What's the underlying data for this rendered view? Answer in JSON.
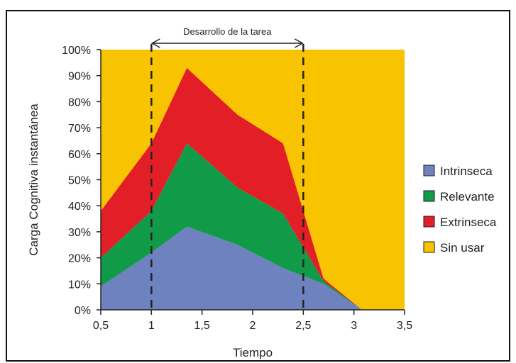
{
  "chart_data": {
    "type": "area",
    "stacked": true,
    "title": "",
    "xlabel": "Tiempo",
    "ylabel": "Carga Cognitiva instantánea",
    "xlim": [
      0.5,
      3.5
    ],
    "ylim": [
      0,
      100
    ],
    "x_ticks": [
      "0,5",
      "1",
      "1,5",
      "2",
      "2,5",
      "3",
      "3,5"
    ],
    "x_tick_values": [
      0.5,
      1,
      1.5,
      2,
      2.5,
      3,
      3.5
    ],
    "y_ticks": [
      "0%",
      "10%",
      "20%",
      "30%",
      "40%",
      "50%",
      "60%",
      "70%",
      "80%",
      "90%",
      "100%"
    ],
    "y_tick_values": [
      0,
      10,
      20,
      30,
      40,
      50,
      60,
      70,
      80,
      90,
      100
    ],
    "x": [
      0.5,
      1.0,
      1.35,
      1.85,
      2.3,
      2.7,
      3.08,
      3.5
    ],
    "series": [
      {
        "name": "Intrinseca",
        "color": "#6f82c0",
        "values": [
          9,
          22,
          32,
          25,
          16,
          10,
          0,
          0
        ]
      },
      {
        "name": "Relevante",
        "color": "#119a48",
        "values": [
          11,
          16,
          32,
          22,
          21,
          1,
          0,
          0
        ]
      },
      {
        "name": "Extrinseca",
        "color": "#e21f26",
        "values": [
          18,
          26,
          29,
          28,
          27,
          1,
          0,
          0
        ]
      },
      {
        "name": "Sin usar",
        "color": "#f8c300",
        "values": [
          62,
          36,
          7,
          25,
          36,
          88,
          100,
          100
        ]
      }
    ],
    "vlines": [
      1.0,
      2.5
    ],
    "annotation": {
      "text": "Desarrollo de la tarea",
      "from": 1.0,
      "to": 2.5
    },
    "legend_position": "right",
    "grid": false
  }
}
